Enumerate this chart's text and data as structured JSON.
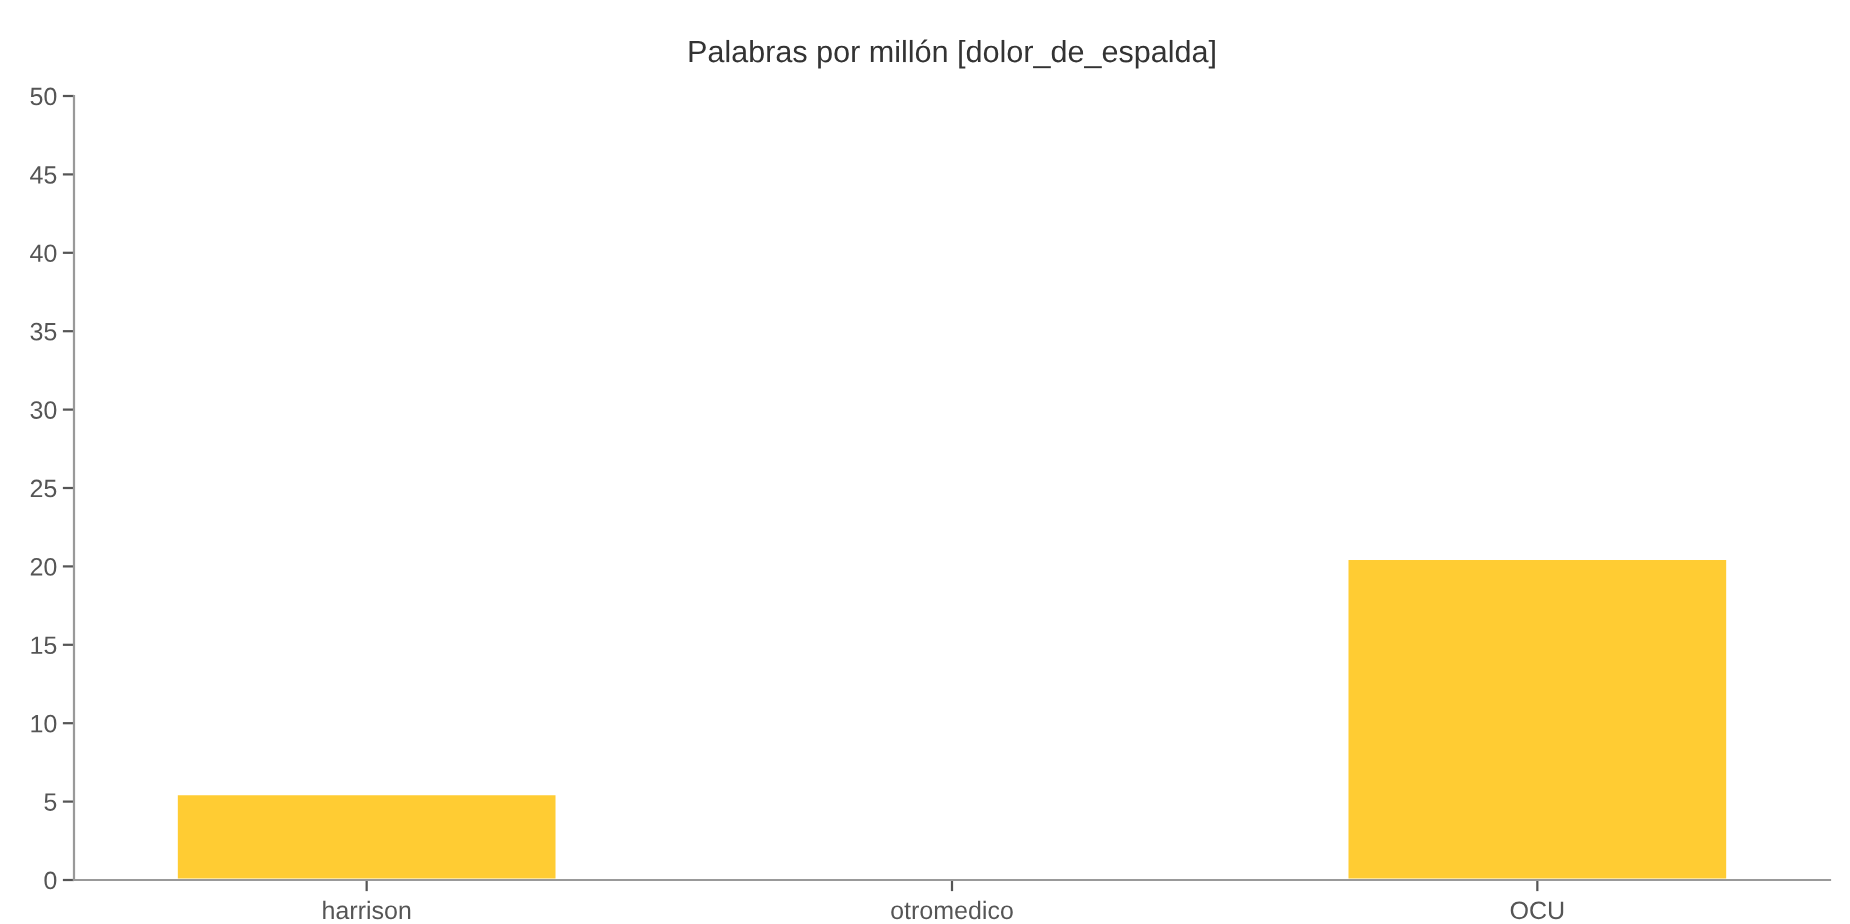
{
  "chart_data": {
    "type": "bar",
    "title": "Palabras por millón [dolor_de_espalda]",
    "categories": [
      "harrison",
      "otromedico",
      "OCU"
    ],
    "values": [
      5.5,
      0,
      20.5
    ],
    "color": "#ffcc33",
    "ylim": [
      0,
      50
    ],
    "yticks": [
      0,
      5,
      10,
      15,
      20,
      25,
      30,
      35,
      40,
      45,
      50
    ],
    "grid": false
  }
}
